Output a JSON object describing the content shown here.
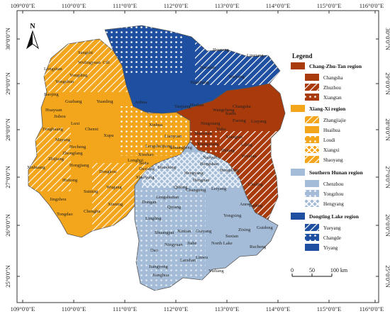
{
  "map": {
    "lon_ticks": [
      "109°0'0\"E",
      "110°0'0\"E",
      "111°0'0\"E",
      "112°0'0\"E",
      "113°0'0\"E",
      "114°0'0\"E",
      "115°0'0\"E",
      "116°0'0\"E"
    ],
    "lat_ticks": [
      "30°0'0\"N",
      "29°0'0\"N",
      "28°0'0\"N",
      "27°0'0\"N",
      "26°0'0\"N",
      "25°0'0\"N"
    ],
    "north_label": "N",
    "colors": {
      "changzhutan": "#a93a0b",
      "xiangxi": "#f3a51b",
      "southern": "#a4bcd8",
      "dongting": "#1f4fa0"
    }
  },
  "legend": {
    "title": "Legend",
    "groups": [
      {
        "title": "Chang-Zhu-Tan region",
        "items": [
          {
            "label": "Changsha",
            "pattern": "solid"
          },
          {
            "label": "Zhuzhou",
            "pattern": "hatch"
          },
          {
            "label": "Xiangtan",
            "pattern": "dots"
          }
        ]
      },
      {
        "title": "Xiang-Xi region",
        "items": [
          {
            "label": "Zhangjiajie",
            "pattern": "hatch"
          },
          {
            "label": "Huaihua",
            "pattern": "solid"
          },
          {
            "label": "Loudi",
            "pattern": "dots"
          },
          {
            "label": "Xiangxi",
            "pattern": "cross"
          },
          {
            "label": "Shaoyang",
            "pattern": "hatch"
          }
        ]
      },
      {
        "title": "Southern Hunan region",
        "items": [
          {
            "label": "Chenzhou",
            "pattern": "solid"
          },
          {
            "label": "Yongzhou",
            "pattern": "dots"
          },
          {
            "label": "Hengyang",
            "pattern": "cross"
          }
        ]
      },
      {
        "title": "Dongting Lake region",
        "items": [
          {
            "label": "Yueyang",
            "pattern": "hatch"
          },
          {
            "label": "Changde",
            "pattern": "dots"
          },
          {
            "label": "Yiyang",
            "pattern": "solid"
          }
        ]
      }
    ]
  },
  "scale": {
    "labels": [
      "0",
      "50",
      "100 km"
    ]
  },
  "counties": [
    {
      "name": "Sangzhi",
      "region": "xiangxi"
    },
    {
      "name": "Wulingyuan",
      "region": "xiangxi"
    },
    {
      "name": "Cili",
      "region": "xiangxi"
    },
    {
      "name": "Longshan",
      "region": "xiangxi"
    },
    {
      "name": "Yongding",
      "region": "xiangxi"
    },
    {
      "name": "Yongshun",
      "region": "xiangxi"
    },
    {
      "name": "Baojing",
      "region": "xiangxi"
    },
    {
      "name": "Guzhang",
      "region": "xiangxi"
    },
    {
      "name": "Huayuan",
      "region": "xiangxi"
    },
    {
      "name": "Jishou",
      "region": "xiangxi"
    },
    {
      "name": "Luxi",
      "region": "xiangxi"
    },
    {
      "name": "Fenghuang",
      "region": "xiangxi"
    },
    {
      "name": "Yuanling",
      "region": "xiangxi"
    },
    {
      "name": "Chenxi",
      "region": "xiangxi"
    },
    {
      "name": "Xupu",
      "region": "xiangxi"
    },
    {
      "name": "Mayang",
      "region": "xiangxi"
    },
    {
      "name": "Hecheng",
      "region": "xiangxi"
    },
    {
      "name": "Zhongfang",
      "region": "xiangxi"
    },
    {
      "name": "Zhijiang",
      "region": "xiangxi"
    },
    {
      "name": "Xinhuang",
      "region": "xiangxi"
    },
    {
      "name": "Hongjiang",
      "region": "xiangxi"
    },
    {
      "name": "Huitong",
      "region": "xiangxi"
    },
    {
      "name": "Dongkou",
      "region": "xiangxi"
    },
    {
      "name": "Longhui",
      "region": "xiangxi"
    },
    {
      "name": "Suining",
      "region": "xiangxi"
    },
    {
      "name": "Wugang",
      "region": "xiangxi"
    },
    {
      "name": "Jingzhou",
      "region": "xiangxi"
    },
    {
      "name": "Xinning",
      "region": "xiangxi"
    },
    {
      "name": "Tongdao",
      "region": "xiangxi"
    },
    {
      "name": "Shaoyang",
      "region": "xiangxi"
    },
    {
      "name": "Chengbu",
      "region": "xiangxi"
    },
    {
      "name": "Xinhua",
      "region": "xiangxi"
    },
    {
      "name": "Lianyuan",
      "region": "xiangxi"
    },
    {
      "name": "Lengshuijiang",
      "region": "xiangxi"
    },
    {
      "name": "Xinshao",
      "region": "xiangxi"
    },
    {
      "name": "Shuangfeng",
      "region": "xiangxi"
    },
    {
      "name": "Shaodong",
      "region": "xiangxi"
    },
    {
      "name": "Beita",
      "region": "xiangxi"
    },
    {
      "name": "Daxiang",
      "region": "xiangxi"
    },
    {
      "name": "Anhua",
      "region": "dongting"
    },
    {
      "name": "Taojiang",
      "region": "dongting"
    },
    {
      "name": "Heshan",
      "region": "dongting"
    },
    {
      "name": "Yuanjiang",
      "region": "dongting"
    },
    {
      "name": "Huarong",
      "region": "dongting"
    },
    {
      "name": "Linxiang",
      "region": "dongting"
    },
    {
      "name": "Nanxian",
      "region": "dongting"
    },
    {
      "name": "Yueyang",
      "region": "dongting"
    },
    {
      "name": "Wangcheng",
      "region": "changzhutan"
    },
    {
      "name": "Changsha",
      "region": "changzhutan"
    },
    {
      "name": "Kaifu",
      "region": "changzhutan"
    },
    {
      "name": "Furong",
      "region": "changzhutan"
    },
    {
      "name": "Ningxiang",
      "region": "changzhutan"
    },
    {
      "name": "Liuyang",
      "region": "changzhutan"
    },
    {
      "name": "Yuhu",
      "region": "changzhutan"
    },
    {
      "name": "Xiangtan",
      "region": "changzhutan"
    },
    {
      "name": "Shaoshan",
      "region": "changzhutan"
    },
    {
      "name": "Xiangxiang",
      "region": "changzhutan"
    },
    {
      "name": "Liling",
      "region": "changzhutan"
    },
    {
      "name": "Hetang",
      "region": "changzhutan"
    },
    {
      "name": "Youxian",
      "region": "changzhutan"
    },
    {
      "name": "Chaling",
      "region": "changzhutan"
    },
    {
      "name": "Yanling",
      "region": "changzhutan"
    },
    {
      "name": "Hengshan",
      "region": "southern"
    },
    {
      "name": "Hengyang",
      "region": "southern"
    },
    {
      "name": "Hengdong",
      "region": "southern"
    },
    {
      "name": "Nanyue",
      "region": "southern"
    },
    {
      "name": "Hengnan",
      "region": "southern"
    },
    {
      "name": "Leiyang",
      "region": "southern"
    },
    {
      "name": "Changning",
      "region": "southern"
    },
    {
      "name": "Qidong",
      "region": "southern"
    },
    {
      "name": "Dongan",
      "region": "southern"
    },
    {
      "name": "Lengshuitan",
      "region": "southern"
    },
    {
      "name": "Qiyang",
      "region": "southern"
    },
    {
      "name": "Yongxing",
      "region": "southern"
    },
    {
      "name": "Anren",
      "region": "southern"
    },
    {
      "name": "Lingling",
      "region": "southern"
    },
    {
      "name": "Shuangpai",
      "region": "southern"
    },
    {
      "name": "Xintian",
      "region": "southern"
    },
    {
      "name": "Guiyang",
      "region": "southern"
    },
    {
      "name": "Suxian",
      "region": "southern"
    },
    {
      "name": "Zixing",
      "region": "southern"
    },
    {
      "name": "Guidong",
      "region": "southern"
    },
    {
      "name": "Ningyuan",
      "region": "southern"
    },
    {
      "name": "Jiahe",
      "region": "southern"
    },
    {
      "name": "North Lake",
      "region": "southern"
    },
    {
      "name": "Rucheng",
      "region": "southern"
    },
    {
      "name": "Dao",
      "region": "southern"
    },
    {
      "name": "Linwu",
      "region": "southern"
    },
    {
      "name": "Lanshan",
      "region": "southern"
    },
    {
      "name": "Jiangyong",
      "region": "southern"
    },
    {
      "name": "Jianghua",
      "region": "southern"
    },
    {
      "name": "Yizhang",
      "region": "southern"
    }
  ]
}
